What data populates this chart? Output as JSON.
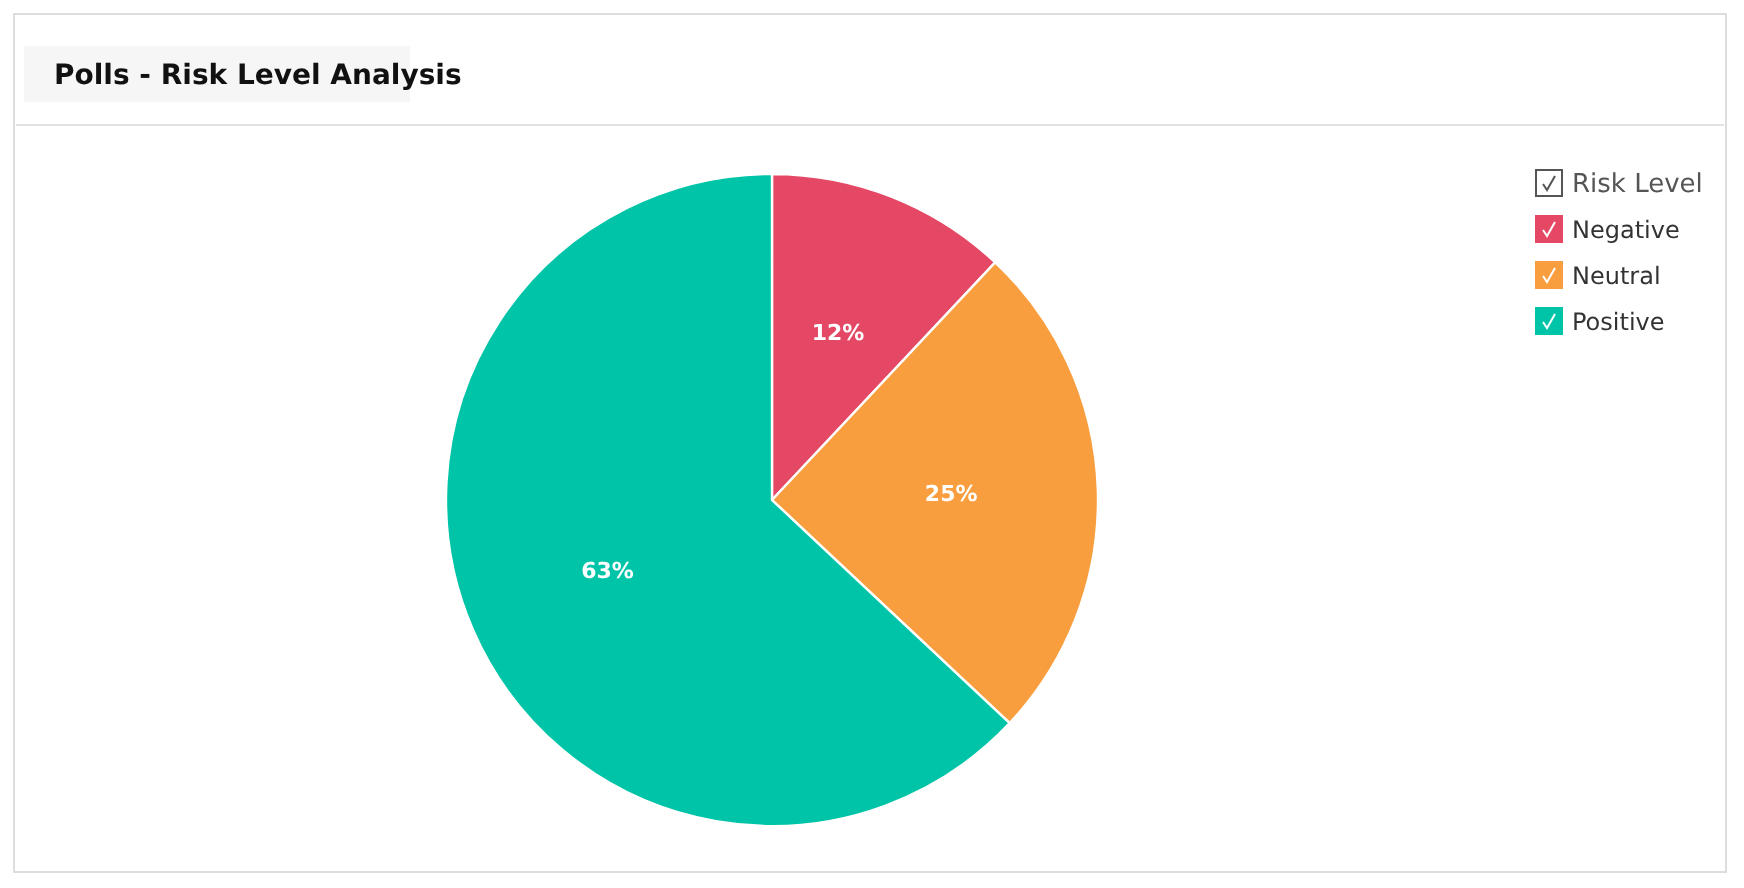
{
  "chart_data": {
    "type": "pie",
    "title": "Polls - Risk Level Analysis",
    "legend_title": "Risk Level",
    "categories": [
      "Negative",
      "Neutral",
      "Positive"
    ],
    "values": [
      12,
      25,
      63
    ],
    "colors": [
      "#e44865",
      "#f89e3e",
      "#00c4a7"
    ],
    "value_labels": [
      "12%",
      "25%",
      "63%"
    ],
    "legend": "top right"
  }
}
